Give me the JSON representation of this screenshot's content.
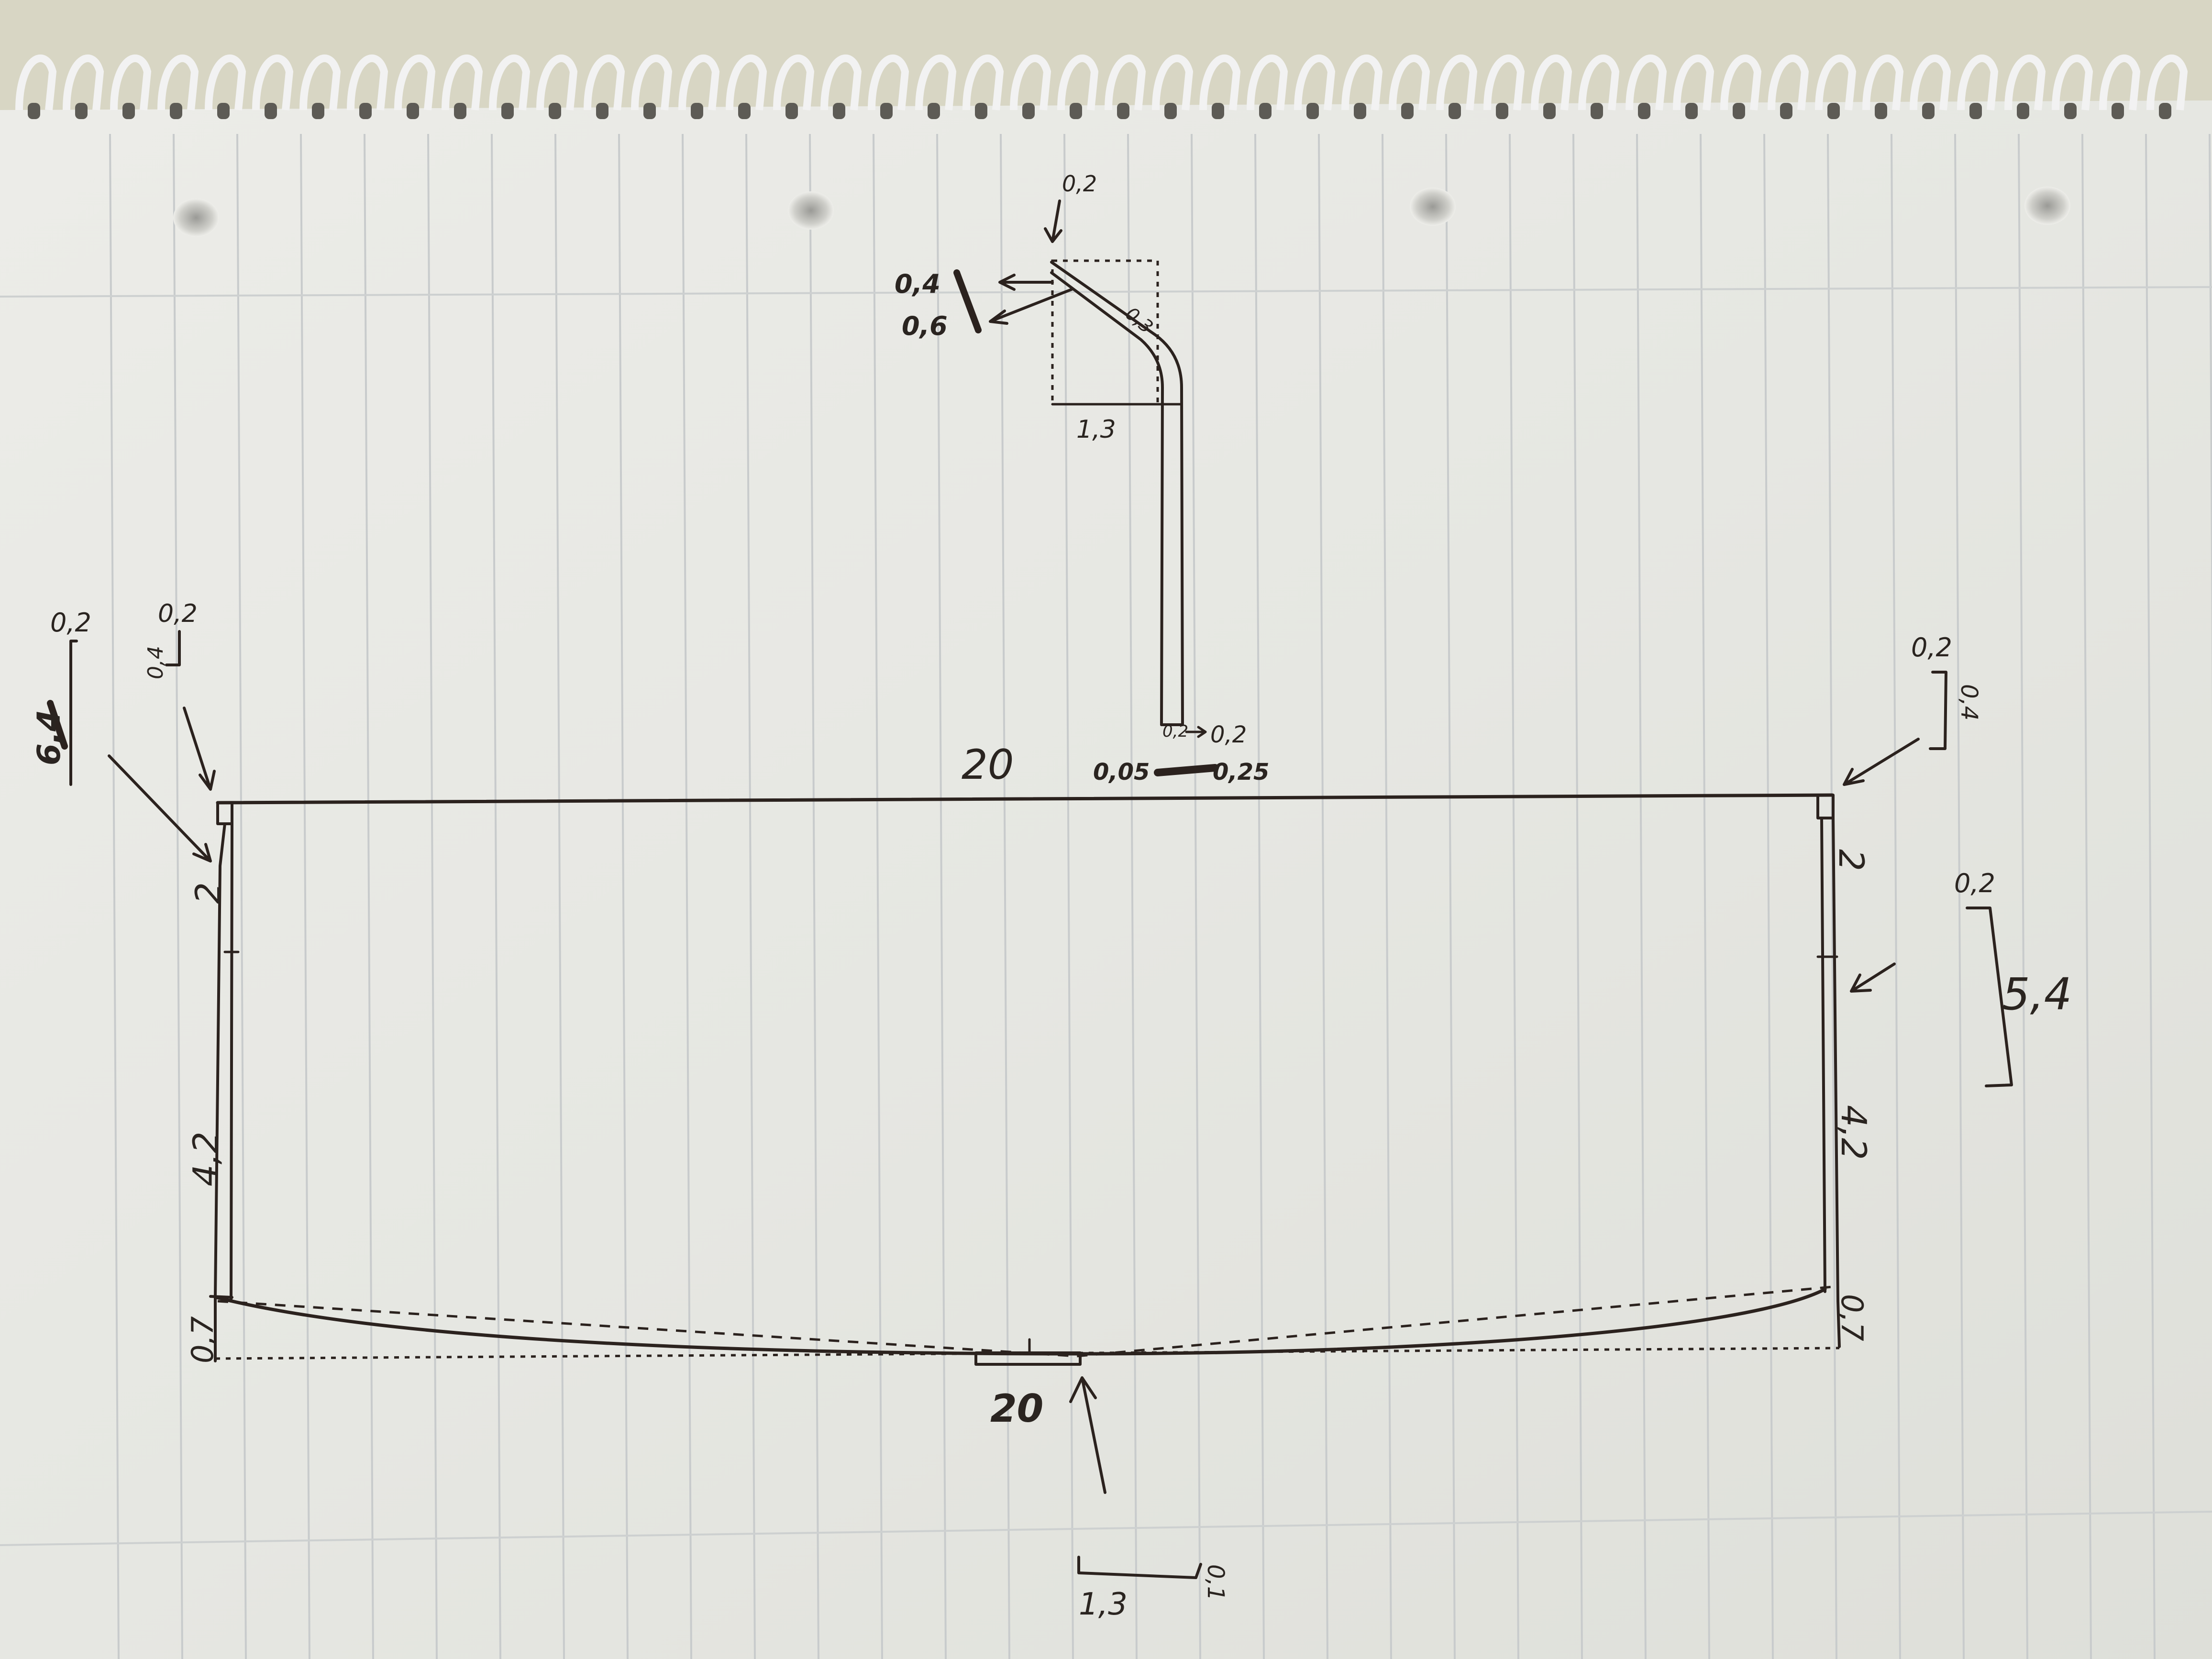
{
  "colors": {
    "paper": "#ebebe6",
    "rule_line": "#c9cccd",
    "ink": "#2b221e",
    "background": "#d8d6c4",
    "spiral": "#f2f2f2"
  },
  "sketch": {
    "top_width": "20",
    "bottom_width": "20",
    "left_wall_upper": "2",
    "left_wall_lower": "4,2",
    "left_bottom_gap": "0,7",
    "right_wall_upper": "2",
    "right_wall_lower": "4,2",
    "right_bottom_gap": "0,7",
    "left_detail_width": "0,2",
    "left_detail_height": "6,4",
    "left_small_width": "0,2",
    "left_small_height": "0,4",
    "right_small_width": "0,2",
    "right_small_height": "0,4",
    "right_detail_width": "0,2",
    "right_detail_height": "5,4",
    "clip_top_label": "0,2",
    "clip_outer_1": "0,4",
    "clip_outer_2": "0,6",
    "clip_width": "1,3",
    "clip_foot_right": "0,2",
    "clip_foot_left": "0,05",
    "clip_foot_bottom": "0,25",
    "clip_small": "0,3",
    "clip_angle": "0,2",
    "bottom_detail_width": "1,3",
    "bottom_detail_height": "0,1"
  }
}
